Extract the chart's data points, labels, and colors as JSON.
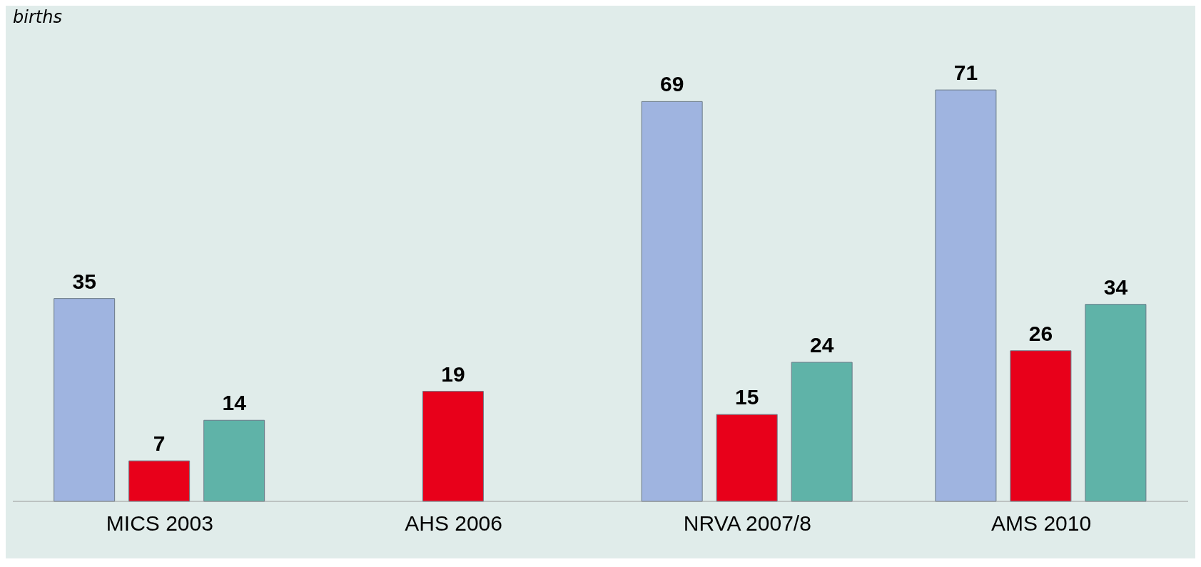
{
  "chart_data": {
    "type": "bar",
    "annotations": [
      "births"
    ],
    "categories": [
      "MICS 2003",
      "AHS 2006",
      "NRVA 2007/8",
      "AMS 2010"
    ],
    "series": [
      {
        "color": "#9fb4e0",
        "values": [
          35,
          null,
          69,
          71
        ]
      },
      {
        "color": "#e8001a",
        "values": [
          7,
          19,
          15,
          26
        ]
      },
      {
        "color": "#5fb3a8",
        "values": [
          14,
          null,
          24,
          34
        ]
      }
    ],
    "data_labels": true
  }
}
